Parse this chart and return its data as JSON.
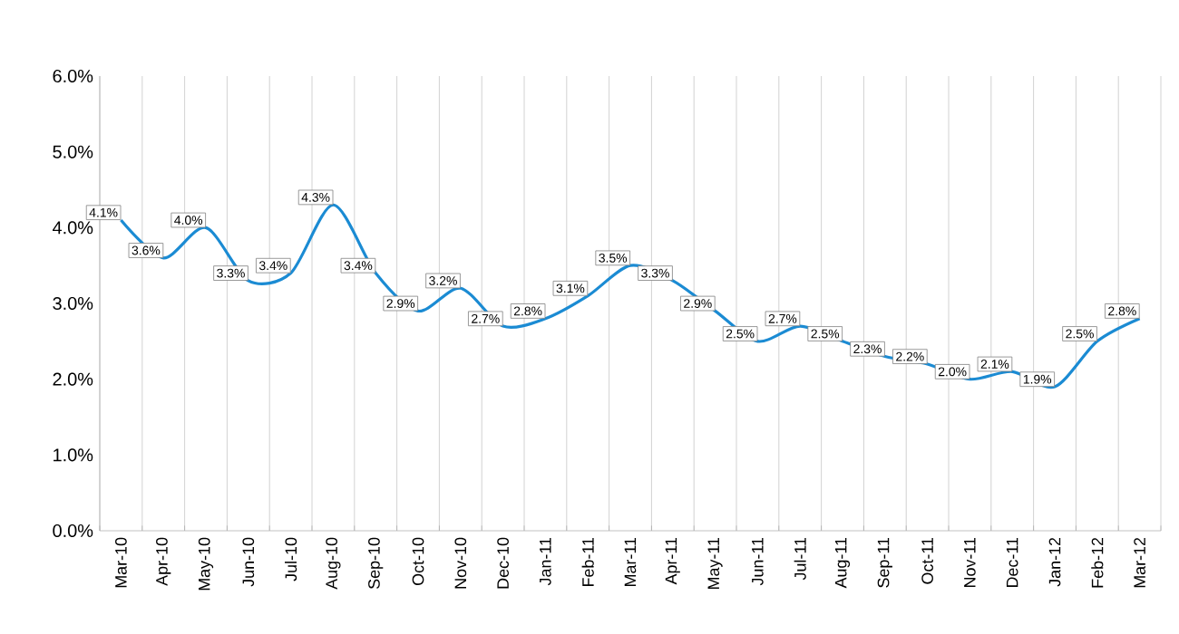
{
  "chart_data": {
    "type": "line",
    "categories": [
      "Mar-10",
      "Apr-10",
      "May-10",
      "Jun-10",
      "Jul-10",
      "Aug-10",
      "Sep-10",
      "Oct-10",
      "Nov-10",
      "Dec-10",
      "Jan-11",
      "Feb-11",
      "Mar-11",
      "Apr-11",
      "May-11",
      "Jun-11",
      "Jul-11",
      "Aug-11",
      "Sep-11",
      "Oct-11",
      "Nov-11",
      "Dec-11",
      "Jan-12",
      "Feb-12",
      "Mar-12"
    ],
    "values": [
      4.1,
      3.6,
      4.0,
      3.3,
      3.4,
      4.3,
      3.4,
      2.9,
      3.2,
      2.7,
      2.8,
      3.1,
      3.5,
      3.3,
      2.9,
      2.5,
      2.7,
      2.5,
      2.3,
      2.2,
      2.0,
      2.1,
      1.9,
      2.5,
      2.8
    ],
    "value_labels": [
      "4.1%",
      "3.6%",
      "4.0%",
      "3.3%",
      "3.4%",
      "4.3%",
      "3.4%",
      "2.9%",
      "3.2%",
      "2.7%",
      "2.8%",
      "3.1%",
      "3.5%",
      "3.3%",
      "2.9%",
      "2.5%",
      "2.7%",
      "2.5%",
      "2.3%",
      "2.2%",
      "2.0%",
      "2.1%",
      "1.9%",
      "2.5%",
      "2.8%"
    ],
    "color": "#1b8bd3",
    "ylim": [
      0,
      6
    ],
    "yticks": [
      {
        "value": 0,
        "label": "0.0%"
      },
      {
        "value": 1,
        "label": "1.0%"
      },
      {
        "value": 2,
        "label": "2.0%"
      },
      {
        "value": 3,
        "label": "3.0%"
      },
      {
        "value": 4,
        "label": "4.0%"
      },
      {
        "value": 5,
        "label": "5.0%"
      },
      {
        "value": 6,
        "label": "6.0%"
      }
    ],
    "grid": "x",
    "marker": "none",
    "line_style": "solid"
  }
}
